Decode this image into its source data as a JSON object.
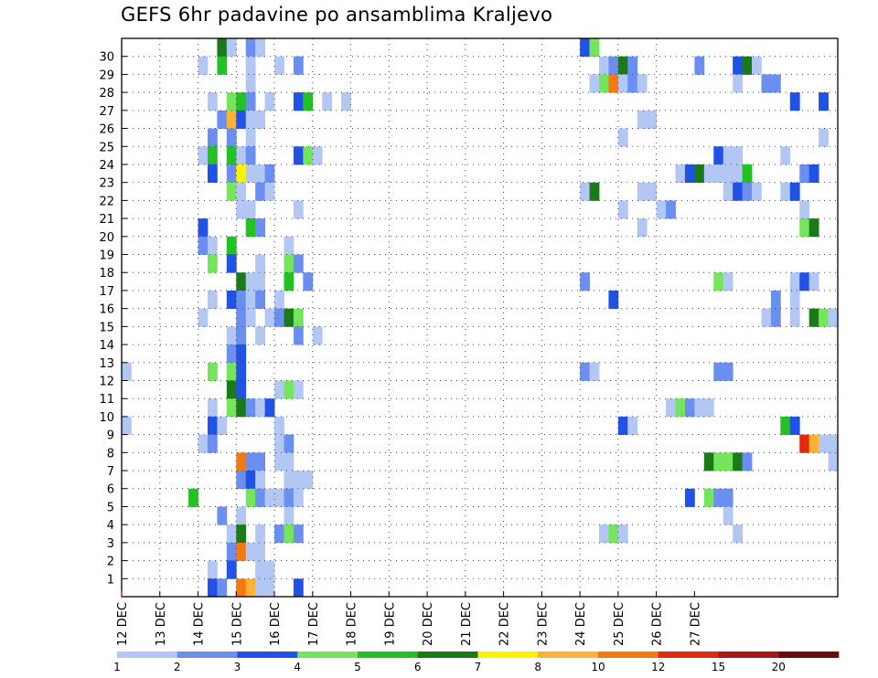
{
  "title": "GEFS 6hr padavine po ansamblima Kraljevo",
  "chart_data": {
    "type": "heatmap",
    "title": "GEFS 6hr padavine po ansamblima Kraljevo",
    "x_tick_labels": [
      "12 DEC",
      "13 DEC",
      "14 DEC",
      "15 DEC",
      "16 DEC",
      "17 DEC",
      "18 DEC",
      "19 DEC",
      "20 DEC",
      "21 DEC",
      "22 DEC",
      "23 DEC",
      "24 DEC",
      "25 DEC",
      "26 DEC",
      "27 DEC"
    ],
    "y_tick_labels": [
      "1",
      "2",
      "3",
      "4",
      "5",
      "6",
      "7",
      "8",
      "9",
      "10",
      "11",
      "12",
      "13",
      "14",
      "15",
      "16",
      "17",
      "18",
      "19",
      "20",
      "21",
      "22",
      "23",
      "24",
      "25",
      "26",
      "27",
      "28",
      "29",
      "30"
    ],
    "time_step_hours": 6,
    "members": 31,
    "legend": {
      "colors": [
        "#b3c7f5",
        "#6b8ff0",
        "#2052e6",
        "#75e65c",
        "#22c222",
        "#1a7a1a",
        "#fff200",
        "#fdb235",
        "#f5790f",
        "#e02a0a",
        "#aa1515",
        "#6e0a0a"
      ],
      "labels": [
        "1",
        "2",
        "3",
        "4",
        "5",
        "6",
        "7",
        "8",
        "10",
        "12",
        "15",
        "20"
      ]
    },
    "cells_note": "each cell: [time_step_index, member_row, color_class 0-11]",
    "cells": [
      [
        10,
        30,
        5
      ],
      [
        11,
        30,
        0
      ],
      [
        13,
        30,
        1
      ],
      [
        14,
        30,
        0
      ],
      [
        48,
        30,
        2
      ],
      [
        49,
        30,
        3
      ],
      [
        8,
        29,
        0
      ],
      [
        10,
        29,
        4
      ],
      [
        13,
        29,
        0
      ],
      [
        16,
        29,
        0
      ],
      [
        18,
        29,
        1
      ],
      [
        50,
        29,
        0
      ],
      [
        51,
        29,
        1
      ],
      [
        52,
        29,
        5
      ],
      [
        53,
        29,
        1
      ],
      [
        60,
        29,
        1
      ],
      [
        64,
        29,
        2
      ],
      [
        65,
        29,
        5
      ],
      [
        66,
        29,
        0
      ],
      [
        13,
        28,
        0
      ],
      [
        49,
        28,
        0
      ],
      [
        50,
        28,
        3
      ],
      [
        51,
        28,
        8
      ],
      [
        52,
        28,
        0
      ],
      [
        53,
        28,
        1
      ],
      [
        54,
        28,
        0
      ],
      [
        64,
        28,
        0
      ],
      [
        67,
        28,
        1
      ],
      [
        68,
        28,
        1
      ],
      [
        9,
        27,
        0
      ],
      [
        11,
        27,
        3
      ],
      [
        12,
        27,
        4
      ],
      [
        13,
        27,
        1
      ],
      [
        15,
        27,
        0
      ],
      [
        18,
        27,
        2
      ],
      [
        19,
        27,
        4
      ],
      [
        21,
        27,
        0
      ],
      [
        23,
        27,
        0
      ],
      [
        70,
        27,
        2
      ],
      [
        73,
        27,
        2
      ],
      [
        10,
        26,
        1
      ],
      [
        11,
        26,
        7
      ],
      [
        12,
        26,
        2
      ],
      [
        13,
        26,
        0
      ],
      [
        14,
        26,
        0
      ],
      [
        54,
        26,
        0
      ],
      [
        55,
        26,
        0
      ],
      [
        9,
        25,
        1
      ],
      [
        11,
        25,
        1
      ],
      [
        13,
        25,
        0
      ],
      [
        52,
        25,
        0
      ],
      [
        73,
        25,
        0
      ],
      [
        8,
        24,
        0
      ],
      [
        9,
        24,
        4
      ],
      [
        11,
        24,
        4
      ],
      [
        12,
        24,
        0
      ],
      [
        13,
        24,
        1
      ],
      [
        18,
        24,
        2
      ],
      [
        19,
        24,
        3
      ],
      [
        20,
        24,
        0
      ],
      [
        62,
        24,
        2
      ],
      [
        63,
        24,
        0
      ],
      [
        64,
        24,
        0
      ],
      [
        69,
        24,
        0
      ],
      [
        9,
        23,
        2
      ],
      [
        11,
        23,
        1
      ],
      [
        12,
        23,
        6
      ],
      [
        13,
        23,
        0
      ],
      [
        14,
        23,
        0
      ],
      [
        15,
        23,
        1
      ],
      [
        58,
        23,
        0
      ],
      [
        59,
        23,
        2
      ],
      [
        60,
        23,
        5
      ],
      [
        61,
        23,
        0
      ],
      [
        62,
        23,
        0
      ],
      [
        63,
        23,
        0
      ],
      [
        64,
        23,
        0
      ],
      [
        65,
        23,
        4
      ],
      [
        71,
        23,
        1
      ],
      [
        72,
        23,
        2
      ],
      [
        11,
        22,
        3
      ],
      [
        12,
        22,
        0
      ],
      [
        14,
        22,
        1
      ],
      [
        15,
        22,
        0
      ],
      [
        48,
        22,
        0
      ],
      [
        49,
        22,
        5
      ],
      [
        54,
        22,
        0
      ],
      [
        55,
        22,
        0
      ],
      [
        63,
        22,
        0
      ],
      [
        64,
        22,
        2
      ],
      [
        65,
        22,
        1
      ],
      [
        66,
        22,
        0
      ],
      [
        69,
        22,
        0
      ],
      [
        70,
        22,
        2
      ],
      [
        12,
        21,
        0
      ],
      [
        13,
        21,
        0
      ],
      [
        18,
        21,
        0
      ],
      [
        52,
        21,
        0
      ],
      [
        56,
        21,
        0
      ],
      [
        57,
        21,
        1
      ],
      [
        71,
        21,
        0
      ],
      [
        8,
        20,
        2
      ],
      [
        13,
        20,
        4
      ],
      [
        14,
        20,
        1
      ],
      [
        54,
        20,
        0
      ],
      [
        71,
        20,
        3
      ],
      [
        72,
        20,
        5
      ],
      [
        8,
        19,
        1
      ],
      [
        9,
        19,
        0
      ],
      [
        11,
        19,
        4
      ],
      [
        17,
        19,
        0
      ],
      [
        9,
        18,
        3
      ],
      [
        11,
        18,
        2
      ],
      [
        14,
        18,
        0
      ],
      [
        17,
        18,
        3
      ],
      [
        18,
        18,
        1
      ],
      [
        12,
        17,
        5
      ],
      [
        13,
        17,
        0
      ],
      [
        14,
        17,
        0
      ],
      [
        17,
        17,
        4
      ],
      [
        19,
        17,
        1
      ],
      [
        48,
        17,
        1
      ],
      [
        62,
        17,
        3
      ],
      [
        63,
        17,
        0
      ],
      [
        70,
        17,
        0
      ],
      [
        71,
        17,
        2
      ],
      [
        72,
        17,
        0
      ],
      [
        9,
        16,
        0
      ],
      [
        11,
        16,
        2
      ],
      [
        12,
        16,
        1
      ],
      [
        13,
        16,
        0
      ],
      [
        14,
        16,
        1
      ],
      [
        16,
        16,
        0
      ],
      [
        51,
        16,
        2
      ],
      [
        68,
        16,
        1
      ],
      [
        70,
        16,
        0
      ],
      [
        8,
        15,
        0
      ],
      [
        12,
        15,
        1
      ],
      [
        13,
        15,
        0
      ],
      [
        15,
        15,
        0
      ],
      [
        16,
        15,
        1
      ],
      [
        17,
        15,
        5
      ],
      [
        18,
        15,
        3
      ],
      [
        67,
        15,
        0
      ],
      [
        68,
        15,
        1
      ],
      [
        70,
        15,
        0
      ],
      [
        72,
        15,
        5
      ],
      [
        73,
        15,
        3
      ],
      [
        74,
        15,
        0
      ],
      [
        11,
        14,
        0
      ],
      [
        12,
        14,
        1
      ],
      [
        14,
        14,
        0
      ],
      [
        18,
        14,
        1
      ],
      [
        20,
        14,
        0
      ],
      [
        11,
        13,
        1
      ],
      [
        12,
        13,
        2
      ],
      [
        0,
        12,
        0
      ],
      [
        9,
        12,
        3
      ],
      [
        11,
        12,
        3
      ],
      [
        12,
        12,
        2
      ],
      [
        48,
        12,
        1
      ],
      [
        49,
        12,
        0
      ],
      [
        62,
        12,
        1
      ],
      [
        63,
        12,
        1
      ],
      [
        11,
        11,
        5
      ],
      [
        12,
        11,
        2
      ],
      [
        16,
        11,
        0
      ],
      [
        17,
        11,
        3
      ],
      [
        18,
        11,
        0
      ],
      [
        9,
        10,
        0
      ],
      [
        11,
        10,
        3
      ],
      [
        12,
        10,
        5
      ],
      [
        13,
        10,
        1
      ],
      [
        14,
        10,
        0
      ],
      [
        15,
        10,
        2
      ],
      [
        57,
        10,
        0
      ],
      [
        58,
        10,
        3
      ],
      [
        59,
        10,
        1
      ],
      [
        60,
        10,
        0
      ],
      [
        61,
        10,
        0
      ],
      [
        0,
        9,
        0
      ],
      [
        9,
        9,
        2
      ],
      [
        10,
        9,
        0
      ],
      [
        16,
        9,
        0
      ],
      [
        52,
        9,
        2
      ],
      [
        53,
        9,
        0
      ],
      [
        69,
        9,
        4
      ],
      [
        70,
        9,
        2
      ],
      [
        8,
        8,
        0
      ],
      [
        9,
        8,
        1
      ],
      [
        16,
        8,
        0
      ],
      [
        17,
        8,
        1
      ],
      [
        71,
        8,
        9
      ],
      [
        72,
        8,
        7
      ],
      [
        73,
        8,
        0
      ],
      [
        74,
        8,
        0
      ],
      [
        12,
        7,
        8
      ],
      [
        13,
        7,
        1
      ],
      [
        14,
        7,
        1
      ],
      [
        16,
        7,
        0
      ],
      [
        17,
        7,
        0
      ],
      [
        61,
        7,
        5
      ],
      [
        62,
        7,
        3
      ],
      [
        63,
        7,
        3
      ],
      [
        64,
        7,
        5
      ],
      [
        65,
        7,
        1
      ],
      [
        74,
        7,
        0
      ],
      [
        12,
        6,
        1
      ],
      [
        13,
        6,
        2
      ],
      [
        14,
        6,
        0
      ],
      [
        17,
        6,
        0
      ],
      [
        18,
        6,
        0
      ],
      [
        19,
        6,
        0
      ],
      [
        7,
        5,
        4
      ],
      [
        13,
        5,
        3
      ],
      [
        14,
        5,
        1
      ],
      [
        15,
        5,
        0
      ],
      [
        16,
        5,
        0
      ],
      [
        17,
        5,
        1
      ],
      [
        18,
        5,
        0
      ],
      [
        59,
        5,
        2
      ],
      [
        61,
        5,
        3
      ],
      [
        62,
        5,
        1
      ],
      [
        63,
        5,
        1
      ],
      [
        10,
        4,
        1
      ],
      [
        12,
        4,
        0
      ],
      [
        17,
        4,
        0
      ],
      [
        63,
        4,
        0
      ],
      [
        11,
        3,
        0
      ],
      [
        12,
        3,
        5
      ],
      [
        14,
        3,
        0
      ],
      [
        16,
        3,
        1
      ],
      [
        17,
        3,
        3
      ],
      [
        18,
        3,
        1
      ],
      [
        50,
        3,
        0
      ],
      [
        51,
        3,
        3
      ],
      [
        52,
        3,
        0
      ],
      [
        64,
        3,
        0
      ],
      [
        11,
        2,
        1
      ],
      [
        12,
        2,
        8
      ],
      [
        13,
        2,
        0
      ],
      [
        14,
        2,
        0
      ],
      [
        9,
        1,
        0
      ],
      [
        11,
        1,
        2
      ],
      [
        14,
        1,
        0
      ],
      [
        15,
        1,
        0
      ],
      [
        9,
        0,
        2
      ],
      [
        10,
        0,
        1
      ],
      [
        12,
        0,
        8
      ],
      [
        13,
        0,
        7
      ],
      [
        14,
        0,
        0
      ],
      [
        15,
        0,
        0
      ],
      [
        18,
        0,
        2
      ]
    ]
  }
}
